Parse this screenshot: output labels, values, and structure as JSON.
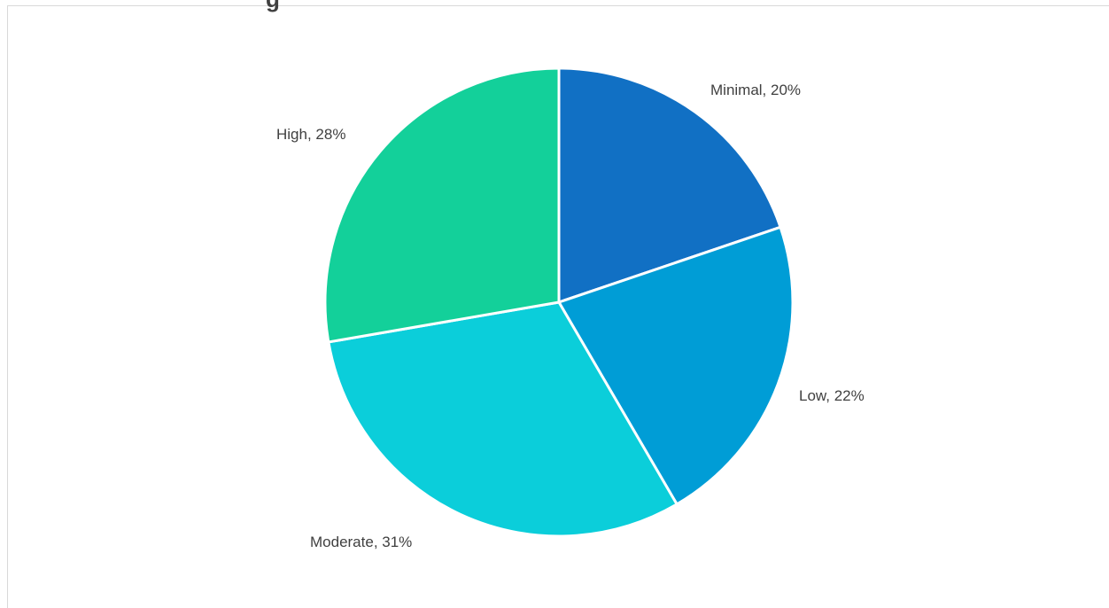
{
  "chart_data": {
    "type": "pie",
    "title": "g",
    "categories": [
      "Minimal",
      "Low",
      "Moderate",
      "High"
    ],
    "values": [
      20,
      22,
      31,
      28
    ],
    "data_labels": [
      "Minimal, 20%",
      "Low, 22%",
      "Moderate, 31%",
      "High, 28%"
    ],
    "colors": [
      "#1170C4",
      "#009DD6",
      "#0BCEDA",
      "#13D09A"
    ],
    "slice_border_color": "#ffffff",
    "legend": "none",
    "start_angle": "12 o'clock, clockwise"
  }
}
